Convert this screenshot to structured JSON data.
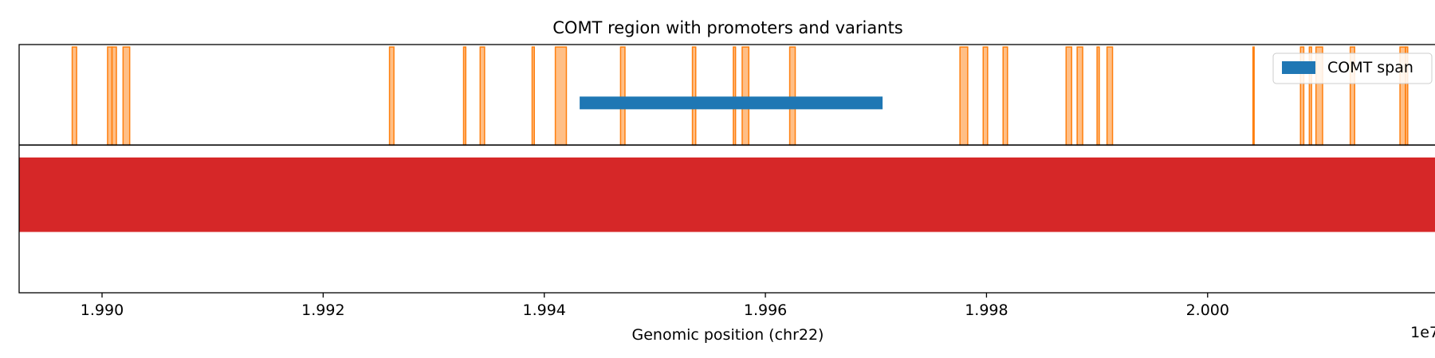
{
  "chart_data": {
    "type": "genome-track",
    "title": "COMT region with promoters and variants",
    "xlabel": "Genomic position (chr22)",
    "ylabel": "",
    "x_offset_label": "1e7",
    "x_tick_values": [
      19900000,
      19920000,
      19940000,
      19960000,
      19980000,
      20000000
    ],
    "x_tick_labels": [
      "1.990",
      "1.992",
      "1.994",
      "1.996",
      "1.998",
      "2.000"
    ],
    "xlim": [
      19892500,
      20021000
    ],
    "ylim": [
      0,
      1
    ],
    "grid": false,
    "legend": {
      "position": "top-right",
      "entries": [
        {
          "label": "COMT span",
          "color": "#1f77b4"
        }
      ]
    },
    "comt_span": {
      "label": "COMT span",
      "start": 19943200,
      "end": 19970600,
      "y": 0.765,
      "color": "#1f77b4"
    },
    "baseline": {
      "y": 0.595,
      "color": "#000000"
    },
    "variant_band": {
      "start": 19892500,
      "end": 20021000,
      "y_low": 0.245,
      "y_high": 0.545,
      "color": "#d62728"
    },
    "promoter_color": "#ff7f0e",
    "promoters": [
      [
        19897300,
        19897700
      ],
      [
        19900500,
        19900900
      ],
      [
        19900900,
        19901300
      ],
      [
        19901900,
        19902500
      ],
      [
        19926000,
        19926400
      ],
      [
        19932700,
        19932900
      ],
      [
        19934200,
        19934600
      ],
      [
        19938900,
        19939100
      ],
      [
        19941000,
        19942000
      ],
      [
        19946900,
        19947300
      ],
      [
        19953400,
        19953700
      ],
      [
        19957100,
        19957300
      ],
      [
        19957900,
        19958500
      ],
      [
        19962200,
        19962700
      ],
      [
        19977600,
        19978300
      ],
      [
        19979700,
        19980100
      ],
      [
        19981500,
        19981900
      ],
      [
        19987200,
        19987700
      ],
      [
        19988200,
        19988700
      ],
      [
        19990000,
        19990200
      ],
      [
        19990900,
        19991400
      ],
      [
        20004100,
        20004200
      ],
      [
        20008400,
        20008700
      ],
      [
        20009200,
        20009400
      ],
      [
        20009800,
        20010400
      ],
      [
        20012900,
        20013300
      ],
      [
        20017400,
        20017900
      ],
      [
        20017900,
        20018100
      ]
    ],
    "promoter_y": [
      0.595,
      0.99
    ]
  }
}
